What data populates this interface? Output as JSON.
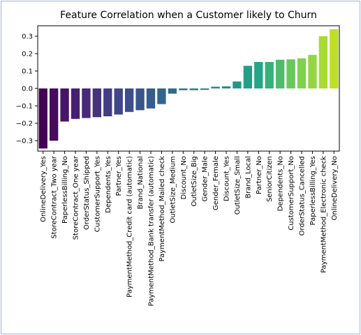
{
  "chart_data": {
    "type": "bar",
    "title": "Feature Correlation when a Customer likely to Churn",
    "xlabel": "",
    "ylabel": "",
    "ylim": [
      -0.36,
      0.36
    ],
    "yticks": [
      -0.3,
      -0.2,
      -0.1,
      0.0,
      0.1,
      0.2,
      0.3
    ],
    "ytick_labels": [
      "−0.3",
      "−0.2",
      "−0.1",
      "0.0",
      "0.1",
      "0.2",
      "0.3"
    ],
    "grid": false,
    "legend": "none",
    "colormap": "viridis",
    "categories": [
      "OnlineDelivery_Yes",
      "StoreContract_Two year",
      "PaperlessBilling_No",
      "StoreContract_One year",
      "OrderStatus_Shipped",
      "CustomerSupport_Yes",
      "Dependents_Yes",
      "Partner_Yes",
      "PaymentMethod_Credit card (automatic)",
      "Brand_National",
      "PaymentMethod_Bank transfer (automatic)",
      "PaymentMethod_Mailed check",
      "OutletSize_Medium",
      "Discount_No",
      "OutletSize_Big",
      "Gender_Male",
      "Gender_Female",
      "Discount_Yes",
      "OutletSize_Small",
      "Brand_Local",
      "Partner_No",
      "SeniorCitizen",
      "Dependents_No",
      "CustomerSupport_No",
      "OrderStatus_Cancelled",
      "PaperlessBilling_Yes",
      "PaymentMethod_Electronic check",
      "OnlineDelivery_No"
    ],
    "values": [
      -0.345,
      -0.3,
      -0.19,
      -0.175,
      -0.17,
      -0.165,
      -0.16,
      -0.15,
      -0.135,
      -0.125,
      -0.115,
      -0.09,
      -0.03,
      -0.01,
      -0.01,
      -0.008,
      0.01,
      0.012,
      0.04,
      0.13,
      0.152,
      0.152,
      0.165,
      0.167,
      0.173,
      0.193,
      0.3,
      0.34
    ]
  }
}
